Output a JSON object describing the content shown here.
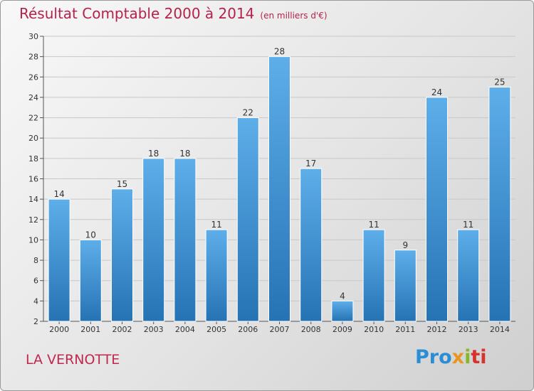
{
  "title": "Résultat Comptable 2000 à 2014",
  "subtitle": "(en milliers d'€)",
  "commune": "LA VERNOTTE",
  "logo": {
    "p1": "Pro",
    "p2": "x",
    "p3": "i",
    "p4": "ti"
  },
  "colors": {
    "bar_top": "#5eaeea",
    "bar_bottom": "#2673b4",
    "title": "#b5224a"
  },
  "chart_data": {
    "type": "bar",
    "title": "Résultat Comptable 2000 à 2014",
    "ylabel": "en milliers d'€",
    "categories": [
      "2000",
      "2001",
      "2002",
      "2003",
      "2004",
      "2005",
      "2006",
      "2007",
      "2008",
      "2009",
      "2010",
      "2011",
      "2012",
      "2013",
      "2014"
    ],
    "values": [
      14,
      10,
      15,
      18,
      18,
      11,
      22,
      28,
      17,
      4,
      11,
      9,
      24,
      11,
      25
    ],
    "ylim": [
      2,
      30
    ],
    "yticks": [
      2,
      4,
      6,
      8,
      10,
      12,
      14,
      16,
      18,
      20,
      22,
      24,
      26,
      28,
      30
    ],
    "grid": true
  }
}
